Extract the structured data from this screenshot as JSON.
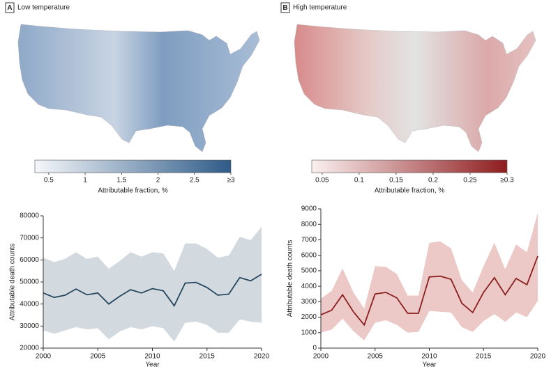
{
  "chart_data": [
    {
      "type": "colorbar",
      "label": "A",
      "title": "Low temperature",
      "xlabel": "Attributable fraction, %",
      "xlim": [
        0.31,
        3
      ],
      "xticks": [
        0.5,
        1,
        1.5,
        2,
        2.5,
        {
          "value": 3,
          "label": "≥3"
        }
      ],
      "colors": [
        "#f5f7fa",
        "#2e5b88"
      ]
    },
    {
      "type": "line",
      "xlabel": "Year",
      "ylabel": "Attributable death counts",
      "color": "#27475f",
      "band_color": "#d3dadf",
      "x": [
        2000,
        2001,
        2002,
        2003,
        2004,
        2005,
        2006,
        2007,
        2008,
        2009,
        2010,
        2011,
        2012,
        2013,
        2014,
        2015,
        2016,
        2017,
        2018,
        2019,
        2020
      ],
      "values": [
        45000,
        43000,
        44000,
        46800,
        44200,
        45000,
        40000,
        43500,
        46500,
        45000,
        47000,
        46000,
        39200,
        49500,
        49800,
        47500,
        44000,
        44500,
        52000,
        50500,
        53500
      ],
      "upper": [
        61000,
        59000,
        60500,
        63500,
        60500,
        61500,
        56000,
        59500,
        63500,
        61500,
        63500,
        63000,
        55000,
        67500,
        67500,
        65000,
        61000,
        62000,
        70500,
        69000,
        75000
      ],
      "lower": [
        28000,
        26500,
        28000,
        29500,
        28500,
        29000,
        24000,
        27500,
        29500,
        28500,
        30000,
        29000,
        23000,
        31500,
        32000,
        30500,
        27000,
        27000,
        33000,
        32000,
        31500
      ],
      "xlim": [
        2000,
        2020
      ],
      "xticks": [
        2000,
        2005,
        2010,
        2015,
        2020
      ],
      "ylim": [
        20000,
        80000
      ],
      "yticks": [
        20000,
        30000,
        40000,
        50000,
        60000,
        70000,
        80000
      ]
    },
    {
      "type": "colorbar",
      "label": "B",
      "title": "High temperature",
      "xlabel": "Attributable fraction, %",
      "xlim": [
        0.036,
        0.3
      ],
      "xticks": [
        0.05,
        0.1,
        0.15,
        0.2,
        0.25,
        {
          "value": 0.3,
          "label": "≥0.3"
        }
      ],
      "colors": [
        "#fbf0f0",
        "#8e1c1e"
      ]
    },
    {
      "type": "line",
      "xlabel": "Year",
      "ylabel": "Attributable death counts",
      "color": "#8b1f20",
      "band_color": "#ecc9c6",
      "x": [
        2000,
        2001,
        2002,
        2003,
        2004,
        2005,
        2006,
        2007,
        2008,
        2009,
        2010,
        2011,
        2012,
        2013,
        2014,
        2015,
        2016,
        2017,
        2018,
        2019,
        2020
      ],
      "values": [
        2150,
        2450,
        3450,
        2350,
        1500,
        3500,
        3600,
        3250,
        2250,
        2250,
        4600,
        4650,
        4450,
        2900,
        2300,
        3600,
        4550,
        3450,
        4500,
        4100,
        5950
      ],
      "upper": [
        3200,
        3700,
        5150,
        3600,
        2550,
        5300,
        5250,
        4800,
        3400,
        3400,
        6800,
        6900,
        6450,
        4400,
        3600,
        5300,
        6800,
        5100,
        6700,
        6200,
        8750
      ],
      "lower": [
        1000,
        1200,
        1900,
        1100,
        500,
        1650,
        1800,
        1500,
        1000,
        1050,
        2400,
        2350,
        2300,
        1350,
        1050,
        1750,
        2200,
        1700,
        2300,
        2000,
        3050
      ],
      "xlim": [
        2000,
        2020
      ],
      "xticks": [
        2000,
        2005,
        2010,
        2015,
        2020
      ],
      "ylim": [
        0,
        9000
      ],
      "yticks": [
        0,
        1000,
        2000,
        3000,
        4000,
        5000,
        6000,
        7000,
        8000,
        9000
      ]
    }
  ]
}
